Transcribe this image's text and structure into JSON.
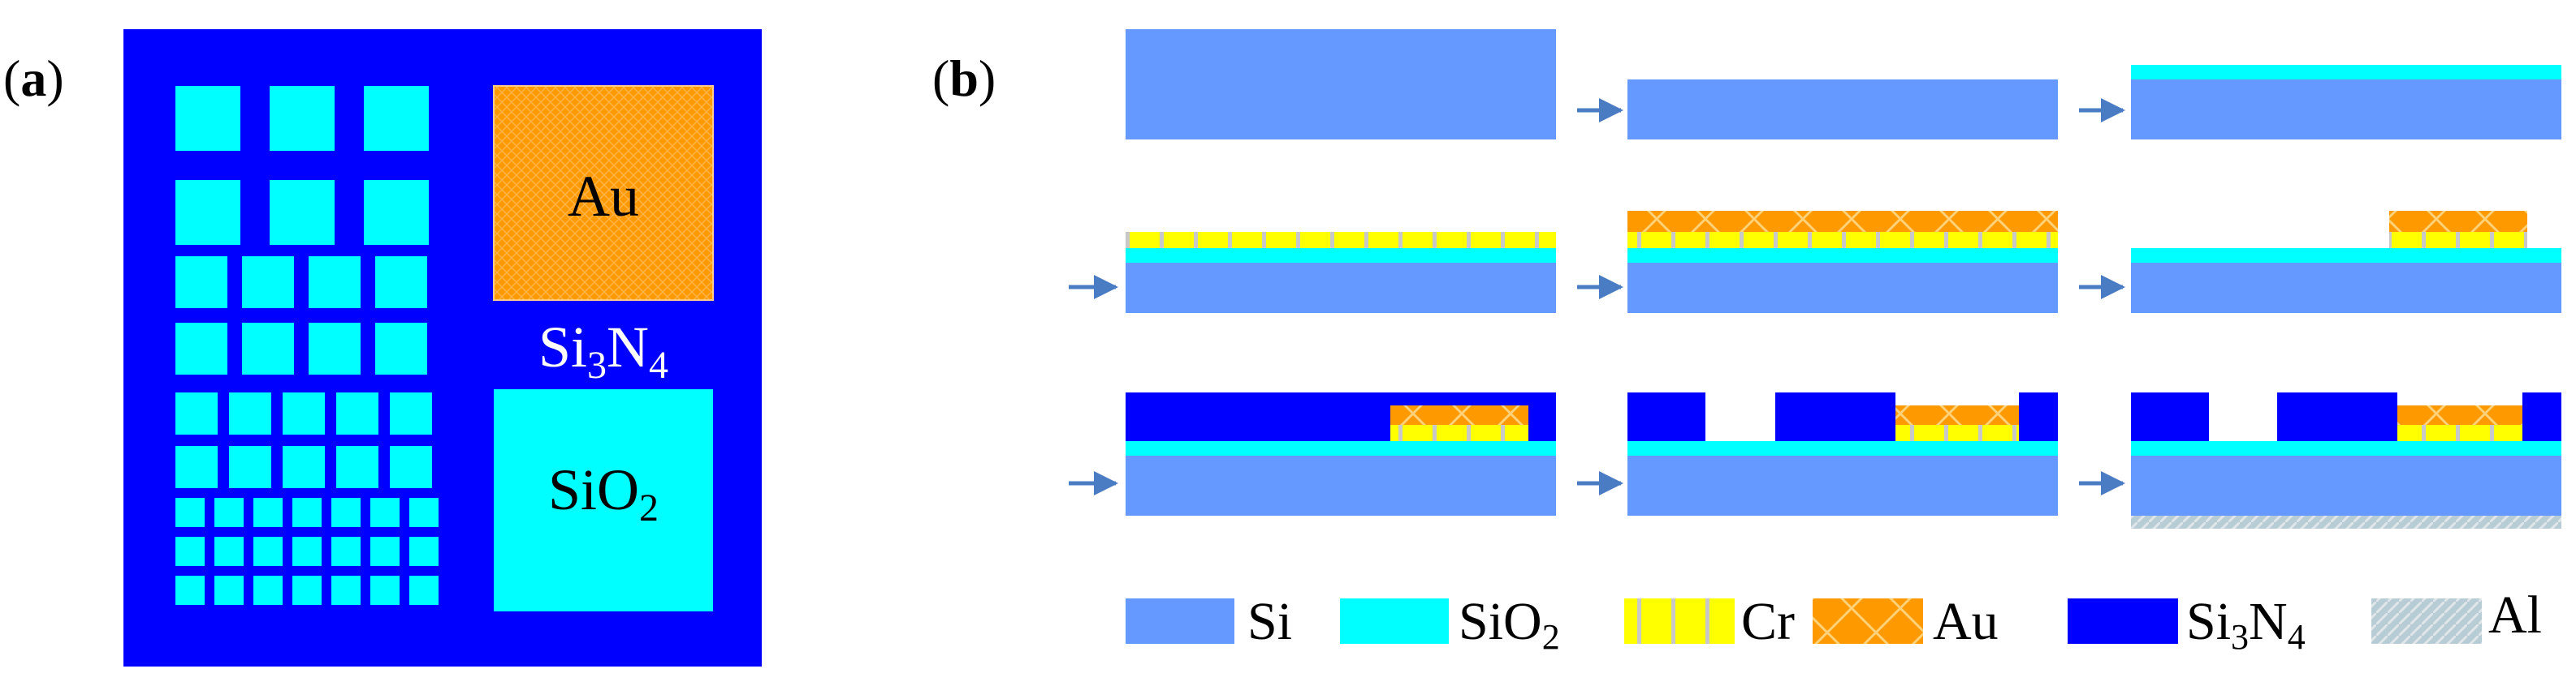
{
  "panels": {
    "a": {
      "open": "(",
      "letter": "a",
      "close": ")"
    },
    "b": {
      "open": "(",
      "letter": "b",
      "close": ")"
    }
  },
  "panel_a": {
    "labels": {
      "au": "Au",
      "si3n4_main": "Si",
      "si3n4_sub1": "3",
      "si3n4_mid": "N",
      "si3n4_sub2": "4",
      "sio2_main": "SiO",
      "sio2_sub": "2"
    }
  },
  "legend": {
    "si": "Si",
    "sio2_main": "SiO",
    "sio2_sub": "2",
    "cr": "Cr",
    "au": "Au",
    "si3n4_main": "Si",
    "si3n4_sub1": "3",
    "si3n4_mid": "N",
    "si3n4_sub2": "4",
    "al": "Al"
  },
  "colors": {
    "si": "#6699ff",
    "sio2": "#00ffff",
    "cr": "#ffff00",
    "au": "#ff9900",
    "si3n4": "#0000ff",
    "al": "#b8ccd6",
    "arrow": "#4a7cc4"
  },
  "icons": {
    "cr": "cr-hatch-swatch",
    "au": "au-crosshatch-swatch",
    "al": "al-diagonal-hatch-swatch",
    "arrow": "process-arrow-icon"
  }
}
